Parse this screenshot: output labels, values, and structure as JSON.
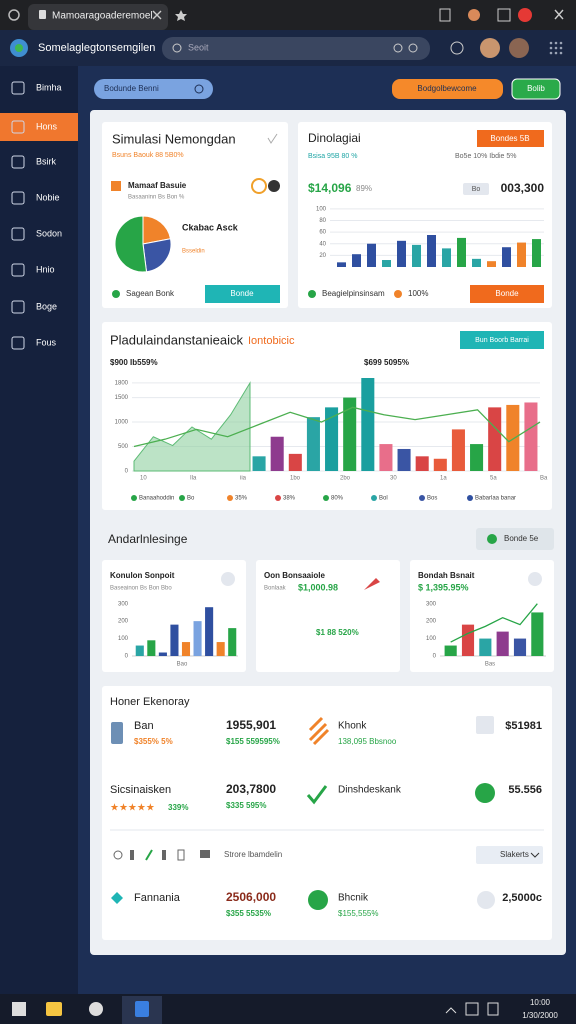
{
  "browser": {
    "tab": "Mamoaragoaderemoel"
  },
  "app": {
    "title": "Somelaglegtonsemgilen",
    "search": "Seoit"
  },
  "sidebar": [
    "Bimha",
    "Hons",
    "Bsirk",
    "Nobie",
    "Sodon",
    "Hnio",
    "Boge",
    "Fous"
  ],
  "toolbar": {
    "filter": "Bodunde Benni",
    "action": "Bodgolbewcome",
    "save": "Bolib"
  },
  "simulation": {
    "title": "Simulasi Nemongdan",
    "subtitle": "Bsuns Baouk 88 5B0%",
    "legend": "Mamaaf Basuie",
    "legend_sub": "Basaaninn Bs Bon %",
    "pie_label": "Ckabac Asck",
    "pie_sub": "Bsseldin",
    "pie": {
      "values": [
        22,
        26,
        52
      ],
      "colors": [
        "#f0832a",
        "#3a55a4",
        "#27a547"
      ]
    },
    "footer": "Sagean Bonk",
    "button": "Bonde"
  },
  "dinolagiai": {
    "title": "Dinolagiai",
    "button": "Bondes 5B",
    "subtitle": "Bsisa 95B 80 %",
    "subtitle_right": "Bo5e 10% Ibdie 5%",
    "amount": "$14,096",
    "amount_change": "89%",
    "total_label": "Bo",
    "total": "003,300",
    "ylim": [
      0,
      110
    ],
    "yticks": [
      100,
      80,
      60,
      40,
      20
    ],
    "bars": {
      "values": [
        8,
        22,
        40,
        12,
        45,
        38,
        55,
        32,
        50,
        14,
        10,
        34,
        42,
        48
      ],
      "colors": [
        "#2f4fa0",
        "#2f4fa0",
        "#2f4fa0",
        "#2aa5a5",
        "#2f4fa0",
        "#2aa5a5",
        "#2f4fa0",
        "#2aa5a5",
        "#27a547",
        "#2aa5a5",
        "#f0832a",
        "#2f4fa0",
        "#f0832a",
        "#27a547"
      ]
    },
    "footer": "Beagielpinsinsam",
    "footer_value": "100%",
    "footer_button": "Bonde"
  },
  "production": {
    "title": "Pladulaindanstanieaick",
    "title_tag": "Iontobicic",
    "button": "Bun Boorb Barrai",
    "left_stat": "$900 Ib559%",
    "right_stat": "$699 5095%",
    "ylim": [
      0,
      1900
    ],
    "yticks": [
      1800,
      1500,
      1000,
      500,
      0
    ],
    "area": {
      "color": "#8fd1a0",
      "values": [
        200,
        700,
        520,
        900,
        650,
        1150,
        1800
      ]
    },
    "bars": {
      "values": [
        300,
        700,
        350,
        1100,
        1300,
        1500,
        1900,
        550,
        450,
        300,
        250,
        850,
        550,
        1300,
        1350,
        1400
      ],
      "colors": [
        "#2aa5a5",
        "#8e3b8e",
        "#d94545",
        "#2aa5a5",
        "#1a9f9f",
        "#27a547",
        "#1a9f9f",
        "#e86e8a",
        "#3a55a4",
        "#d94545",
        "#e85b3b",
        "#e85b3b",
        "#27a547",
        "#d94545",
        "#f0832a",
        "#e86e8a"
      ]
    },
    "line": {
      "color": "#4caf50",
      "values": [
        500,
        650,
        850,
        700,
        950,
        1200,
        1000,
        1300,
        1150,
        1050,
        1150,
        1250,
        600,
        1000
      ]
    },
    "x_labels": [
      "10",
      "Ila",
      "iia",
      "1bo",
      "2bo",
      "30",
      "1a",
      "5a",
      "Ba"
    ],
    "legend": [
      {
        "name": "Banaahoddin",
        "color": "#27a547"
      },
      {
        "name": "Bo",
        "color": "#27a547"
      },
      {
        "name": "35%",
        "color": "#f0832a"
      },
      {
        "name": "38%",
        "color": "#d94545"
      },
      {
        "name": "80%",
        "color": "#27a547"
      },
      {
        "name": "Bol",
        "color": "#2aa5a5"
      },
      {
        "name": "Bos",
        "color": "#3a55a4"
      },
      {
        "name": "Babarlaa banar",
        "color": "#2f4fa0"
      }
    ]
  },
  "analysis": {
    "title": "Andarlnlesinge",
    "button": "Bonde 5e"
  },
  "mini": [
    {
      "title": "Konulon Sonpoit",
      "subtitle": "Baseainon Bs Bon Bbo",
      "ylim": [
        0,
        350
      ],
      "yticks": [
        300,
        200,
        100,
        0
      ],
      "bars": {
        "values": [
          60,
          90,
          20,
          180,
          80,
          200,
          280,
          80,
          160
        ],
        "colors": [
          "#2aa5a5",
          "#27a547",
          "#2f4fa0",
          "#2f4fa0",
          "#f0832a",
          "#7aa3e0",
          "#2f4fa0",
          "#f0832a",
          "#27a547"
        ]
      },
      "x_label": "Bao"
    },
    {
      "title": "Oon Bonsaaiole",
      "subtitle": "Bonlaak",
      "amount": "$1,000.98",
      "value_text": "$1 88 520%"
    },
    {
      "title": "Bondah Bsnait",
      "subtitle": "$ 1,395.95%",
      "ylim": [
        0,
        350
      ],
      "yticks": [
        300,
        200,
        100,
        0
      ],
      "bars": {
        "values": [
          60,
          180,
          100,
          140,
          100,
          250
        ],
        "colors": [
          "#27a547",
          "#d94545",
          "#2aa5a5",
          "#8e3b8e",
          "#3a55a4",
          "#27a547"
        ]
      },
      "line": {
        "color": "#27a547",
        "values": [
          80,
          130,
          170,
          220,
          180,
          300
        ]
      },
      "x_label": "Bas"
    }
  ],
  "economy": {
    "title": "Honer Ekenoray",
    "rows": [
      {
        "name": "Ban",
        "name_sub": "$355% 5%",
        "value": "1955,901",
        "value_sub": "$155 559595%",
        "item": "Khonk",
        "item_sub": "138,095 Bbsnoo",
        "amount": "$51981"
      },
      {
        "name": "Sicsinaisken",
        "rating": "★★★★★",
        "name_sub": "339%",
        "value": "203,7800",
        "value_sub": "$335 595%",
        "item": "Dinshdeskank",
        "amount": "55.556"
      },
      {
        "name": "Fannania",
        "value": "2506,000",
        "value_sub": "$355 5535%",
        "item": "Bhcnik",
        "item_sub": "$155,555%",
        "amount": "2,5000c"
      }
    ],
    "toolbar": "Strore lbamdelin",
    "dropdown": "Slakerts"
  },
  "taskbar": {
    "time": "10:00",
    "date": "1/30/2000"
  }
}
